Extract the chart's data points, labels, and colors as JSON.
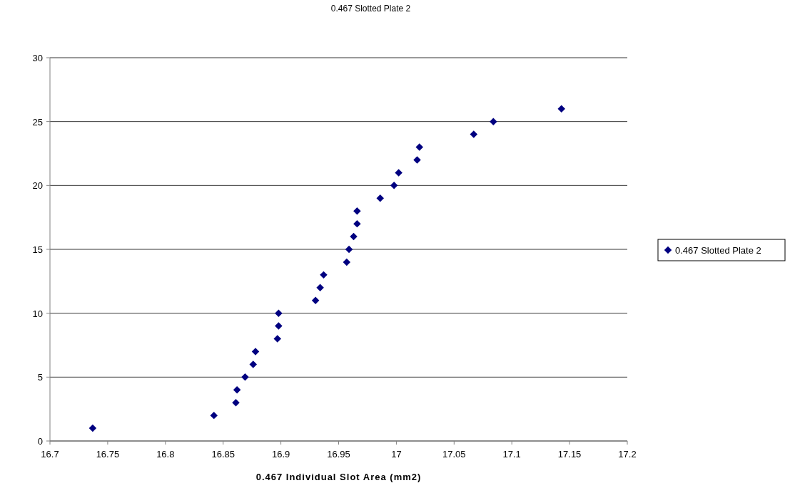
{
  "chart_data": {
    "type": "scatter",
    "title": "0.467 Slotted Plate 2",
    "xlabel": "0.467 Individual Slot Area (mm2)",
    "xlim": [
      16.7,
      17.2
    ],
    "xticks": [
      16.7,
      16.75,
      16.8,
      16.85,
      16.9,
      16.95,
      17,
      17.05,
      17.1,
      17.15,
      17.2
    ],
    "ylim": [
      0,
      30
    ],
    "yticks": [
      0,
      5,
      10,
      15,
      20,
      25,
      30
    ],
    "grid": "y",
    "legend": "right",
    "marker": "diamond",
    "series": [
      {
        "name": "0.467 Slotted Plate 2",
        "color": "#000080",
        "x": [
          16.737,
          16.842,
          16.861,
          16.862,
          16.869,
          16.876,
          16.878,
          16.897,
          16.898,
          16.898,
          16.93,
          16.934,
          16.937,
          16.957,
          16.959,
          16.963,
          16.966,
          16.966,
          16.986,
          16.998,
          17.002,
          17.018,
          17.02,
          17.067,
          17.084,
          17.143
        ],
        "values": [
          1,
          2,
          3,
          4,
          5,
          6,
          7,
          8,
          9,
          10,
          11,
          12,
          13,
          14,
          15,
          16,
          17,
          18,
          19,
          20,
          21,
          22,
          23,
          24,
          25,
          26
        ]
      }
    ]
  }
}
